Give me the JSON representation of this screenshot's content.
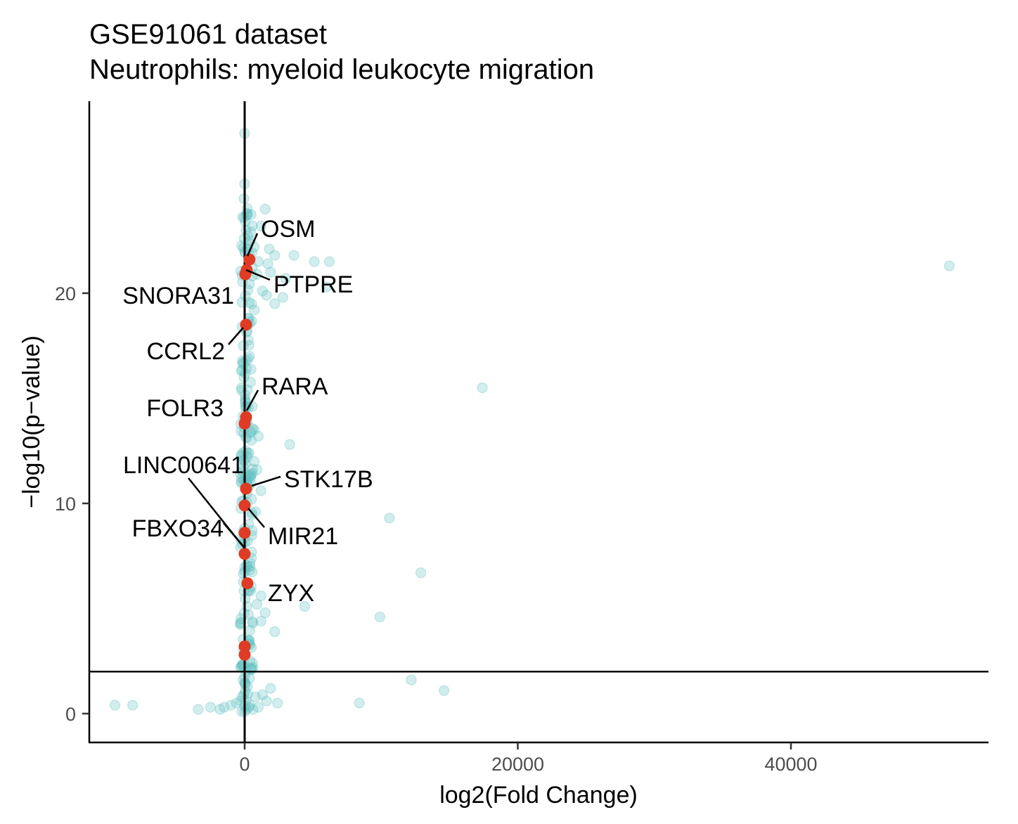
{
  "chart_data": {
    "type": "scatter",
    "title": "GSE91061 dataset",
    "subtitle": "Neutrophils: myeloid leukocyte migration",
    "xlabel": "log2(Fold Change)",
    "ylabel": "−log10(p−value)",
    "xlim": [
      -11500,
      54000
    ],
    "ylim": [
      -1.3,
      29
    ],
    "x_ticks": [
      0,
      20000,
      40000
    ],
    "y_ticks": [
      0,
      10,
      20
    ],
    "grid": false,
    "legend": "none",
    "reference_lines": {
      "vertical_x": 0,
      "horizontal_y": 2
    },
    "colors": {
      "background_points": "#5fbfbf",
      "highlight_points": "#e03b24",
      "lines": "#000000"
    },
    "series": [
      {
        "role": "all genes",
        "points": [
          [
            0,
            27.6
          ],
          [
            0,
            25.2
          ],
          [
            -50,
            24.5
          ],
          [
            150,
            23.8
          ],
          [
            50,
            23.4
          ],
          [
            100,
            23.0
          ],
          [
            -30,
            22.6
          ],
          [
            1500,
            24.0
          ],
          [
            1200,
            23.2
          ],
          [
            400,
            22.5
          ],
          [
            700,
            22.2
          ],
          [
            1800,
            22.1
          ],
          [
            2200,
            21.8
          ],
          [
            3600,
            21.8
          ],
          [
            1000,
            21.5
          ],
          [
            1700,
            21.4
          ],
          [
            1900,
            21.0
          ],
          [
            5100,
            21.5
          ],
          [
            6200,
            21.5
          ],
          [
            900,
            20.9
          ],
          [
            3000,
            20.7
          ],
          [
            6000,
            20.3
          ],
          [
            1300,
            20.1
          ],
          [
            1600,
            19.9
          ],
          [
            2800,
            19.8
          ],
          [
            2200,
            19.5
          ],
          [
            700,
            19.2
          ],
          [
            300,
            18.8
          ],
          [
            200,
            18.2
          ],
          [
            -100,
            17.5
          ],
          [
            100,
            16.8
          ],
          [
            -50,
            16.0
          ],
          [
            200,
            15.4
          ],
          [
            50,
            14.8
          ],
          [
            700,
            13.5
          ],
          [
            1000,
            13.2
          ],
          [
            500,
            13.0
          ],
          [
            3300,
            12.8
          ],
          [
            200,
            12.4
          ],
          [
            700,
            12.0
          ],
          [
            900,
            11.6
          ],
          [
            400,
            11.3
          ],
          [
            200,
            10.9
          ],
          [
            1200,
            10.6
          ],
          [
            500,
            10.2
          ],
          [
            800,
            9.6
          ],
          [
            300,
            9.0
          ],
          [
            200,
            8.2
          ],
          [
            500,
            7.4
          ],
          [
            400,
            7.0
          ],
          [
            1200,
            5.6
          ],
          [
            900,
            5.2
          ],
          [
            1500,
            4.8
          ],
          [
            1200,
            4.4
          ],
          [
            600,
            4.3
          ],
          [
            2200,
            3.9
          ],
          [
            300,
            3.5
          ],
          [
            400,
            2.5
          ],
          [
            600,
            2.2
          ],
          [
            100,
            2.0
          ],
          [
            -100,
            1.6
          ],
          [
            200,
            1.3
          ],
          [
            1900,
            1.2
          ],
          [
            1300,
            0.9
          ],
          [
            800,
            0.8
          ],
          [
            2400,
            0.5
          ],
          [
            1600,
            0.6
          ],
          [
            -300,
            0.6
          ],
          [
            -600,
            0.5
          ],
          [
            -1000,
            0.4
          ],
          [
            -1500,
            0.3
          ],
          [
            -2500,
            0.3
          ],
          [
            -3400,
            0.2
          ],
          [
            -1800,
            0.2
          ],
          [
            -9500,
            0.4
          ],
          [
            -8200,
            0.4
          ],
          [
            300,
            0.3
          ],
          [
            600,
            0.2
          ],
          [
            1000,
            0.3
          ],
          [
            0,
            0.1
          ],
          [
            -200,
            0.1
          ],
          [
            100,
            0.6
          ],
          [
            -50,
            0.9
          ],
          [
            51600,
            21.3
          ],
          [
            17400,
            15.5
          ],
          [
            10600,
            9.3
          ],
          [
            12900,
            6.7
          ],
          [
            4400,
            5.1
          ],
          [
            9900,
            4.6
          ],
          [
            12200,
            1.6
          ],
          [
            14600,
            1.1
          ],
          [
            8400,
            0.5
          ]
        ]
      },
      {
        "role": "myeloid leukocyte migration genes",
        "points": [
          {
            "gene": "OSM",
            "x": 350,
            "y": 21.6
          },
          {
            "gene": "PTPRE",
            "x": 150,
            "y": 21.1
          },
          {
            "gene": "SNORA31",
            "x": 50,
            "y": 20.9
          },
          {
            "gene": "CCRL2",
            "x": 100,
            "y": 18.5
          },
          {
            "gene": "RARA",
            "x": 100,
            "y": 14.1
          },
          {
            "gene": "FOLR3",
            "x": 0,
            "y": 13.8
          },
          {
            "gene": "STK17B",
            "x": 100,
            "y": 10.7
          },
          {
            "gene": "MIR21",
            "x": 0,
            "y": 9.9
          },
          {
            "gene": "LINC00641",
            "x": 0,
            "y": 7.6
          },
          {
            "gene": "FBXO34",
            "x": 0,
            "y": 8.6
          },
          {
            "gene": "ZYX",
            "x": 200,
            "y": 6.2
          },
          {
            "gene": "",
            "x": 0,
            "y": 3.2
          },
          {
            "gene": "",
            "x": 0,
            "y": 2.8
          }
        ]
      }
    ],
    "annotations": [
      {
        "text": "OSM"
      },
      {
        "text": "PTPRE"
      },
      {
        "text": "SNORA31"
      },
      {
        "text": "CCRL2"
      },
      {
        "text": "RARA"
      },
      {
        "text": "FOLR3"
      },
      {
        "text": "LINC00641"
      },
      {
        "text": "STK17B"
      },
      {
        "text": "FBXO34"
      },
      {
        "text": "MIR21"
      },
      {
        "text": "ZYX"
      }
    ]
  }
}
